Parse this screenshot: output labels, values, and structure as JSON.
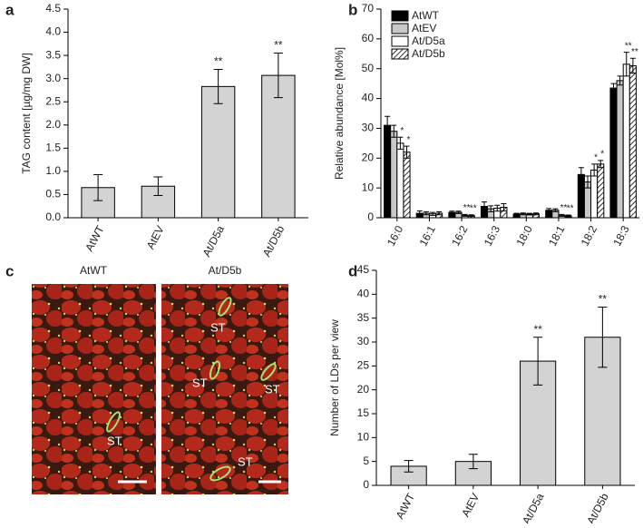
{
  "chart_data": [
    {
      "type": "bar",
      "panel_label": "a",
      "ylabel": "TAG content  [µg/mg DW]",
      "categories": [
        "AtWT",
        "AtEV",
        "At/D5a",
        "At/D5b"
      ],
      "values": [
        0.65,
        0.68,
        2.83,
        3.07
      ],
      "errors": [
        0.28,
        0.2,
        0.37,
        0.48
      ],
      "value_annotations": [
        null,
        null,
        "**",
        "**"
      ],
      "color": "#d3d3d3",
      "ylim": [
        0,
        4.5
      ],
      "yticks": [
        {
          "value": 0,
          "label": "0.0"
        },
        0.5,
        {
          "value": 1,
          "label": "1.0"
        },
        1.5,
        {
          "value": 2,
          "label": "2.0"
        },
        2.5,
        {
          "value": 3,
          "label": "3.0"
        },
        3.5,
        {
          "value": 4,
          "label": "4.0"
        },
        4.5
      ]
    },
    {
      "type": "grouped_bar",
      "panel_label": "b",
      "ylabel": "Relative abundance [Mol%]",
      "legend": "upper left",
      "categories": [
        "16:0",
        "16:1",
        "16:2",
        "16:3",
        "18:0",
        "18:1",
        "18:2",
        "18:3"
      ],
      "series": [
        {
          "name": "AtWT",
          "color": "#000000",
          "values": [
            31,
            1.5,
            1.8,
            3.8,
            1.2,
            2.5,
            14.5,
            43.5
          ],
          "errors": [
            3,
            0.8,
            0.4,
            1.5,
            0.3,
            0.6,
            2.3,
            1.5
          ],
          "value_annotations": [
            null,
            null,
            null,
            null,
            null,
            null,
            null,
            null
          ]
        },
        {
          "name": "AtEV",
          "color": "#c8c8c8",
          "values": [
            29,
            1.5,
            1.8,
            3,
            1.3,
            2.5,
            12,
            46
          ],
          "errors": [
            2,
            0.5,
            0.4,
            1,
            0.3,
            0.5,
            2,
            1.5
          ],
          "value_annotations": [
            null,
            null,
            null,
            null,
            null,
            null,
            null,
            null
          ]
        },
        {
          "name": "At/D5a",
          "color": "#ffffff",
          "values": [
            25,
            1.3,
            0.8,
            3.2,
            1.2,
            0.8,
            16,
            51.5
          ],
          "errors": [
            2,
            0.5,
            0.3,
            1,
            0.3,
            0.3,
            2,
            4
          ],
          "value_annotations": [
            "*",
            null,
            "**",
            null,
            null,
            "**",
            "*",
            "**"
          ]
        },
        {
          "name": "At/D5b",
          "color": "#ffffff",
          "pattern": "hatch",
          "values": [
            22,
            1.5,
            0.7,
            3.5,
            1.3,
            0.6,
            18,
            51
          ],
          "errors": [
            2,
            0.5,
            0.3,
            1.2,
            0.3,
            0.3,
            1.2,
            2.5
          ],
          "value_annotations": [
            "*",
            null,
            "**",
            null,
            null,
            "**",
            "*",
            "**"
          ]
        }
      ],
      "ylim": [
        0,
        70
      ],
      "yticks": [
        0,
        10,
        20,
        30,
        40,
        50,
        60,
        70
      ]
    },
    {
      "type": "bar",
      "panel_label": "d",
      "ylabel": "Number of LDs per view",
      "categories": [
        "AtWT",
        "AtEV",
        "At/D5a",
        "At/D5b"
      ],
      "values": [
        4,
        5,
        26,
        31
      ],
      "errors": [
        1.2,
        1.5,
        5,
        6.3
      ],
      "value_annotations": [
        null,
        null,
        "**",
        "**"
      ],
      "color": "#d3d3d3",
      "ylim": [
        0,
        45
      ],
      "yticks": [
        0,
        5,
        10,
        15,
        20,
        25,
        30,
        35,
        40,
        45
      ]
    }
  ],
  "panel_c": {
    "panel_label": "c",
    "images": [
      {
        "title": "AtWT",
        "labels": [
          "ST"
        ]
      },
      {
        "title": "At/D5b",
        "labels": [
          "ST",
          "ST",
          "ST",
          "ST"
        ]
      }
    ]
  }
}
